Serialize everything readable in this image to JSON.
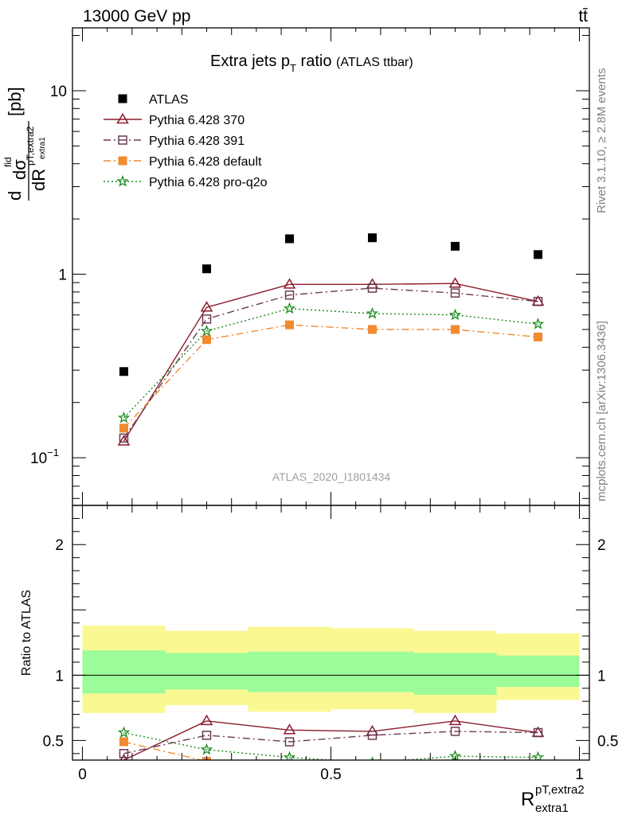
{
  "header": {
    "energy": "13000 GeV pp",
    "process": "tt̄"
  },
  "side_labels": {
    "rivet": "Rivet 3.1.10, ≥ 2.8M events",
    "mcplots": "mcplots.cern.ch [arXiv:1306.3436]"
  },
  "colors": {
    "atlas": "#000000",
    "p370": "#8b1a2b",
    "p391": "#6b3a52",
    "pdefault": "#f28a30",
    "pq2o": "#1a8a1a",
    "band_outer": "#faf893",
    "band_inner": "#9cfc9a"
  },
  "chart_data": [
    {
      "type": "scatter",
      "title_main": "Extra jets p",
      "title_sub": "T",
      "title_suffix": " ratio",
      "title_extra": "(ATLAS ttbar)",
      "watermark": "ATLAS_2020_I1801434",
      "ylabel": "dσ^fid / dR_pT,extra2 extra1 [pb]",
      "ylabel_parts": {
        "d1": "d",
        "dsigma": "dσ",
        "fid": "fid",
        "dR": "dR",
        "sub": "pT,extra2",
        "subsub": "extra1",
        "unit": "[pb]"
      },
      "yscale": "log",
      "ylim": [
        0.055,
        22
      ],
      "xlim": [
        -0.02,
        1.02
      ],
      "yticks": [
        {
          "label": "10",
          "value": 10
        },
        {
          "label": "1",
          "value": 1
        },
        {
          "label": "10",
          "exp": "−1",
          "value": 0.1
        }
      ],
      "legend_position": "top-left",
      "x": [
        0.0833,
        0.25,
        0.4167,
        0.5833,
        0.75,
        0.9167
      ],
      "series": [
        {
          "name": "ATLAS",
          "marker": "square",
          "values": [
            0.295,
            1.07,
            1.56,
            1.58,
            1.42,
            1.28
          ]
        },
        {
          "name": "Pythia 6.428 370",
          "marker": "triangle-open",
          "line": "solid",
          "values": [
            0.123,
            0.66,
            0.88,
            0.88,
            0.89,
            0.71
          ]
        },
        {
          "name": "Pythia 6.428 391",
          "marker": "square-open",
          "line": "dashdot",
          "values": [
            0.128,
            0.57,
            0.77,
            0.84,
            0.79,
            0.71
          ]
        },
        {
          "name": "Pythia 6.428 default",
          "marker": "square",
          "line": "dashdot",
          "values": [
            0.145,
            0.44,
            0.53,
            0.5,
            0.5,
            0.455
          ]
        },
        {
          "name": "Pythia 6.428 pro-q2o",
          "marker": "star",
          "line": "dotted",
          "values": [
            0.165,
            0.49,
            0.65,
            0.61,
            0.6,
            0.535
          ]
        }
      ]
    },
    {
      "type": "scatter",
      "ylabel": "Ratio to ATLAS",
      "xlabel": "R^{pT,extra2}_{extra1}",
      "xlabel_parts": {
        "R": "R",
        "sup": "pT,extra2",
        "sub": "extra1"
      },
      "ylim": [
        0.35,
        2.3
      ],
      "xlim": [
        -0.02,
        1.02
      ],
      "yticks": [
        {
          "label": "2",
          "value": 2
        },
        {
          "label": "1",
          "value": 1
        },
        {
          "label": "0.5",
          "value": 0.5
        }
      ],
      "xticks": [
        {
          "label": "0",
          "value": 0
        },
        {
          "label": "0.5",
          "value": 0.5
        },
        {
          "label": "1",
          "value": 1
        }
      ],
      "bin_edges": [
        0,
        0.1667,
        0.3333,
        0.5,
        0.6667,
        0.8333,
        1.0
      ],
      "band_outer": {
        "low": [
          0.71,
          0.77,
          0.72,
          0.74,
          0.71,
          0.81
        ],
        "high": [
          1.38,
          1.34,
          1.37,
          1.36,
          1.34,
          1.32
        ]
      },
      "band_inner": {
        "low": [
          0.86,
          0.89,
          0.87,
          0.87,
          0.85,
          0.91
        ],
        "high": [
          1.19,
          1.17,
          1.18,
          1.18,
          1.17,
          1.15
        ]
      },
      "series": [
        {
          "name": "Pythia 6.428 370",
          "values": [
            0.35,
            0.65,
            0.58,
            0.57,
            0.65,
            0.56
          ]
        },
        {
          "name": "Pythia 6.428 391",
          "values": [
            0.4,
            0.54,
            0.49,
            0.54,
            0.57,
            0.56
          ]
        },
        {
          "name": "Pythia 6.428 default",
          "values": [
            0.49,
            0.34,
            0.29,
            0.28,
            0.29,
            0.3
          ]
        },
        {
          "name": "Pythia 6.428 pro-q2o",
          "values": [
            0.56,
            0.43,
            0.37,
            0.33,
            0.38,
            0.37
          ]
        }
      ]
    }
  ]
}
